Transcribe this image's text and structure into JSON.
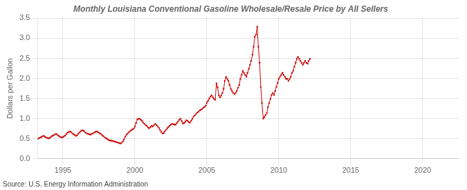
{
  "chart_data": {
    "type": "line",
    "title": "Monthly Louisiana Conventional Gasoline Wholesale/Resale Price by All Sellers",
    "ylabel": "Dollars per Gallon",
    "source": "Source: U.S. Energy Information Administration",
    "color": "#cc0000",
    "marker": "square",
    "grid": true,
    "xlim": [
      1993.25,
      2022.5
    ],
    "xticks": [
      1995,
      2000,
      2005,
      2010,
      2015,
      2020
    ],
    "ylim": [
      0.0,
      3.5
    ],
    "yticks": [
      {
        "value": 0.0,
        "label": "0.0"
      },
      0.5,
      {
        "value": 1.0,
        "label": "1.0"
      },
      1.5,
      {
        "value": 2.0,
        "label": "2.0"
      },
      2.5,
      {
        "value": 3.0,
        "label": "3.0"
      },
      3.5
    ],
    "x": [
      1993.25,
      1993.33,
      1993.42,
      1993.5,
      1993.58,
      1993.67,
      1993.75,
      1993.83,
      1993.92,
      1994.0,
      1994.08,
      1994.17,
      1994.25,
      1994.33,
      1994.42,
      1994.5,
      1994.58,
      1994.67,
      1994.75,
      1994.83,
      1994.92,
      1995.0,
      1995.08,
      1995.17,
      1995.25,
      1995.33,
      1995.42,
      1995.5,
      1995.58,
      1995.67,
      1995.75,
      1995.83,
      1995.92,
      1996.0,
      1996.08,
      1996.17,
      1996.25,
      1996.33,
      1996.42,
      1996.5,
      1996.58,
      1996.67,
      1996.75,
      1996.83,
      1996.92,
      1997.0,
      1997.08,
      1997.17,
      1997.25,
      1997.33,
      1997.42,
      1997.5,
      1997.58,
      1997.67,
      1997.75,
      1997.83,
      1997.92,
      1998.0,
      1998.08,
      1998.17,
      1998.25,
      1998.33,
      1998.42,
      1998.5,
      1998.58,
      1998.67,
      1998.75,
      1998.83,
      1998.92,
      1999.0,
      1999.08,
      1999.17,
      1999.25,
      1999.33,
      1999.42,
      1999.5,
      1999.58,
      1999.67,
      1999.75,
      1999.83,
      1999.92,
      2000.0,
      2000.08,
      2000.17,
      2000.25,
      2000.33,
      2000.42,
      2000.5,
      2000.58,
      2000.67,
      2000.75,
      2000.83,
      2000.92,
      2001.0,
      2001.08,
      2001.17,
      2001.25,
      2001.33,
      2001.42,
      2001.5,
      2001.58,
      2001.67,
      2001.75,
      2001.83,
      2001.92,
      2002.0,
      2002.08,
      2002.17,
      2002.25,
      2002.33,
      2002.42,
      2002.5,
      2002.58,
      2002.67,
      2002.75,
      2002.83,
      2002.92,
      2003.0,
      2003.08,
      2003.17,
      2003.25,
      2003.33,
      2003.42,
      2003.5,
      2003.58,
      2003.67,
      2003.75,
      2003.83,
      2003.92,
      2004.0,
      2004.08,
      2004.17,
      2004.25,
      2004.33,
      2004.42,
      2004.5,
      2004.58,
      2004.67,
      2004.75,
      2004.83,
      2004.92,
      2005.0,
      2005.08,
      2005.17,
      2005.25,
      2005.33,
      2005.42,
      2005.5,
      2005.58,
      2005.67,
      2005.75,
      2005.83,
      2005.92,
      2006.0,
      2006.08,
      2006.17,
      2006.25,
      2006.33,
      2006.42,
      2006.5,
      2006.58,
      2006.67,
      2006.75,
      2006.83,
      2006.92,
      2007.0,
      2007.08,
      2007.17,
      2007.25,
      2007.33,
      2007.42,
      2007.5,
      2007.58,
      2007.67,
      2007.75,
      2007.83,
      2007.92,
      2008.0,
      2008.08,
      2008.17,
      2008.25,
      2008.33,
      2008.42,
      2008.5,
      2008.58,
      2008.67,
      2008.75,
      2008.83,
      2008.92,
      2009.0,
      2009.08,
      2009.17,
      2009.25,
      2009.33,
      2009.42,
      2009.5,
      2009.58,
      2009.67,
      2009.75,
      2009.83,
      2009.92,
      2010.0,
      2010.08,
      2010.17,
      2010.25,
      2010.33,
      2010.42,
      2010.5,
      2010.58,
      2010.67,
      2010.75,
      2010.83,
      2010.92,
      2011.0,
      2011.08,
      2011.17,
      2011.25,
      2011.33,
      2011.42,
      2011.5,
      2011.58,
      2011.67,
      2011.75,
      2011.83,
      2011.92,
      2012.0,
      2012.08,
      2012.17
    ],
    "values": [
      0.5,
      0.51,
      0.53,
      0.54,
      0.56,
      0.57,
      0.55,
      0.53,
      0.52,
      0.51,
      0.52,
      0.54,
      0.57,
      0.58,
      0.6,
      0.62,
      0.61,
      0.58,
      0.56,
      0.54,
      0.53,
      0.54,
      0.56,
      0.58,
      0.62,
      0.65,
      0.67,
      0.68,
      0.66,
      0.63,
      0.61,
      0.59,
      0.57,
      0.59,
      0.63,
      0.66,
      0.69,
      0.71,
      0.7,
      0.68,
      0.65,
      0.63,
      0.62,
      0.61,
      0.6,
      0.62,
      0.63,
      0.65,
      0.67,
      0.68,
      0.67,
      0.65,
      0.63,
      0.61,
      0.58,
      0.56,
      0.53,
      0.51,
      0.49,
      0.47,
      0.46,
      0.45,
      0.45,
      0.44,
      0.43,
      0.42,
      0.41,
      0.4,
      0.39,
      0.38,
      0.4,
      0.43,
      0.48,
      0.55,
      0.6,
      0.63,
      0.66,
      0.69,
      0.71,
      0.73,
      0.75,
      0.8,
      0.89,
      0.98,
      1.0,
      0.99,
      0.97,
      0.94,
      0.9,
      0.87,
      0.84,
      0.82,
      0.78,
      0.76,
      0.79,
      0.82,
      0.8,
      0.84,
      0.87,
      0.84,
      0.81,
      0.77,
      0.72,
      0.67,
      0.63,
      0.64,
      0.68,
      0.72,
      0.76,
      0.79,
      0.82,
      0.85,
      0.87,
      0.86,
      0.85,
      0.85,
      0.89,
      0.93,
      0.97,
      1.0,
      0.94,
      0.88,
      0.89,
      0.92,
      0.96,
      0.94,
      0.91,
      0.9,
      0.95,
      1.0,
      1.05,
      1.08,
      1.12,
      1.15,
      1.17,
      1.2,
      1.22,
      1.24,
      1.27,
      1.29,
      1.32,
      1.4,
      1.44,
      1.5,
      1.55,
      1.58,
      1.53,
      1.49,
      1.47,
      1.88,
      1.78,
      1.58,
      1.53,
      1.57,
      1.64,
      1.74,
      1.94,
      2.04,
      1.99,
      1.94,
      1.84,
      1.74,
      1.69,
      1.64,
      1.61,
      1.64,
      1.69,
      1.77,
      1.84,
      1.99,
      2.09,
      2.19,
      2.14,
      2.09,
      2.04,
      2.14,
      2.24,
      2.34,
      2.44,
      2.59,
      2.79,
      3.04,
      3.09,
      3.29,
      2.79,
      2.39,
      1.79,
      1.39,
      1.0,
      1.04,
      1.09,
      1.14,
      1.29,
      1.39,
      1.49,
      1.59,
      1.64,
      1.59,
      1.69,
      1.79,
      1.89,
      1.99,
      2.04,
      2.09,
      2.14,
      2.09,
      2.04,
      1.99,
      1.99,
      1.94,
      1.99,
      2.04,
      2.14,
      2.19,
      2.29,
      2.39,
      2.49,
      2.54,
      2.49,
      2.44,
      2.39,
      2.34,
      2.39,
      2.44,
      2.39,
      2.37,
      2.44,
      2.49
    ]
  }
}
